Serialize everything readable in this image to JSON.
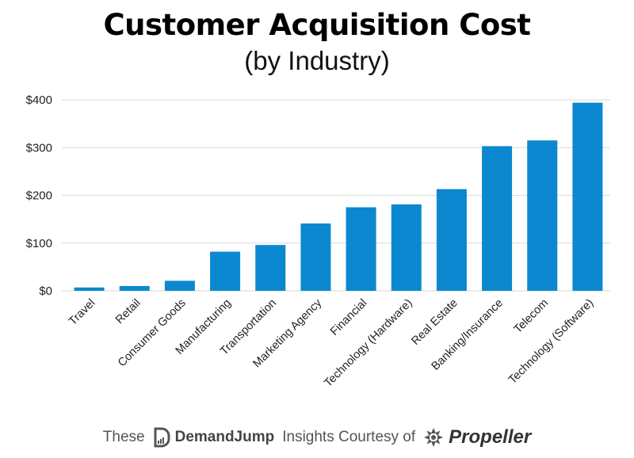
{
  "chart_data": {
    "type": "bar",
    "title": "Customer Acquisition Cost",
    "subtitle": "(by Industry)",
    "categories": [
      "Travel",
      "Retail",
      "Consumer Goods",
      "Manufacturing",
      "Transportation",
      "Marketing Agency",
      "Financial",
      "Technology (Hardware)",
      "Real Estate",
      "Banking/Insurance",
      "Telecom",
      "Technology (Software)"
    ],
    "values": [
      7,
      10,
      21,
      82,
      96,
      141,
      175,
      181,
      213,
      303,
      315,
      394
    ],
    "ylim": [
      0,
      400
    ],
    "yticks": [
      "$0",
      "$100",
      "$200",
      "$300",
      "$400"
    ],
    "ytick_values": [
      0,
      100,
      200,
      300,
      400
    ],
    "grid": true,
    "bar_color": "#0b88cf",
    "grid_color": "#d9d9d9"
  },
  "footer": {
    "prefix": "These",
    "brand1": "DemandJump",
    "middle": "Insights Courtesy of",
    "brand2": "Propeller",
    "brand1_icon": "demandjump-logo-icon",
    "brand2_icon": "propeller-logo-icon"
  }
}
